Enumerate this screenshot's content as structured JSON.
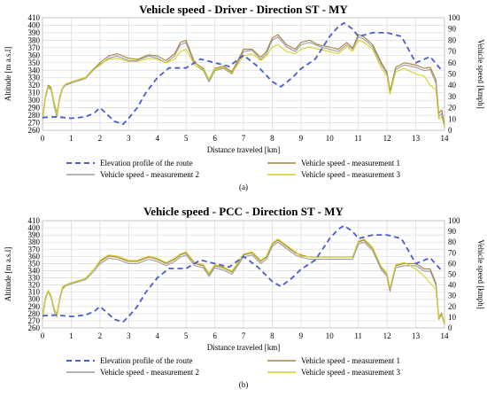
{
  "chart_data": [
    {
      "type": "line",
      "title": "Vehicle speed - Driver - Direction ST - MY",
      "sublabel": "(a)",
      "xlabel": "Distance traveled [km]",
      "ylabel": "Altitude [m a.s.l]",
      "y2label": "Vehicle speed [kmph]",
      "xlim": [
        0,
        14
      ],
      "ylim": [
        260,
        410
      ],
      "y2lim": [
        0,
        100
      ],
      "xticks": [
        "0",
        "1",
        "2",
        "3",
        "4",
        "5",
        "6",
        "7",
        "8",
        "9",
        "10",
        "11",
        "12",
        "13",
        "14"
      ],
      "yticks": [
        "260",
        "270",
        "280",
        "290",
        "300",
        "310",
        "320",
        "330",
        "340",
        "350",
        "360",
        "370",
        "380",
        "390",
        "400",
        "410"
      ],
      "y2ticks": [
        "0",
        "10",
        "20",
        "30",
        "40",
        "50",
        "60",
        "70",
        "80",
        "90",
        "100"
      ],
      "grid": true,
      "legend_position": "bottom",
      "series": [
        {
          "name": "Elevation profile of the route",
          "axis": "left",
          "color": "#4a5bd4",
          "style": "dashed",
          "x": [
            0,
            0.5,
            1,
            1.5,
            1.8,
            2,
            2.2,
            2.5,
            2.8,
            3,
            3.3,
            3.6,
            4,
            4.4,
            5,
            5.5,
            6,
            6.5,
            7,
            7.5,
            8,
            8.3,
            8.7,
            9,
            9.5,
            10,
            10.3,
            10.5,
            10.8,
            11,
            11.5,
            12,
            12.5,
            13,
            13.5,
            13.9
          ],
          "y": [
            277,
            278,
            276,
            278,
            283,
            290,
            283,
            272,
            268,
            276,
            290,
            310,
            330,
            343,
            343,
            355,
            350,
            345,
            360,
            345,
            325,
            318,
            330,
            342,
            355,
            385,
            398,
            403,
            395,
            385,
            390,
            390,
            385,
            350,
            358,
            340
          ]
        },
        {
          "name": "Vehicle speed - measurement 1",
          "axis": "right",
          "color": "#a6803a",
          "style": "solid",
          "x": [
            0,
            0.1,
            0.2,
            0.3,
            0.4,
            0.5,
            0.6,
            0.7,
            0.8,
            1,
            1.5,
            1.8,
            2,
            2.3,
            2.6,
            3,
            3.3,
            3.7,
            4,
            4.3,
            4.6,
            4.8,
            5,
            5.3,
            5.6,
            5.8,
            6,
            6.3,
            6.6,
            7,
            7.3,
            7.6,
            7.8,
            8,
            8.2,
            8.5,
            8.8,
            9,
            9.3,
            9.6,
            10,
            10.3,
            10.6,
            10.8,
            11,
            11.2,
            11.5,
            11.8,
            12,
            12.1,
            12.3,
            12.6,
            13,
            13.3,
            13.5,
            13.7,
            13.8,
            13.9,
            14
          ],
          "y": [
            10,
            30,
            40,
            38,
            25,
            15,
            30,
            38,
            40,
            43,
            47,
            55,
            60,
            66,
            68,
            64,
            63,
            67,
            66,
            62,
            68,
            78,
            80,
            60,
            55,
            45,
            55,
            57,
            52,
            72,
            72,
            65,
            70,
            82,
            85,
            76,
            72,
            78,
            80,
            76,
            74,
            72,
            78,
            73,
            85,
            83,
            76,
            60,
            52,
            35,
            56,
            60,
            58,
            55,
            56,
            45,
            15,
            18,
            5
          ]
        },
        {
          "name": "Vehicle speed - measurement 2",
          "axis": "right",
          "color": "#9a9aa0",
          "style": "solid",
          "x": [
            0,
            0.1,
            0.2,
            0.3,
            0.4,
            0.5,
            0.6,
            0.7,
            0.8,
            1,
            1.5,
            1.8,
            2,
            2.3,
            2.6,
            3,
            3.3,
            3.7,
            4,
            4.3,
            4.6,
            4.8,
            5,
            5.3,
            5.6,
            5.8,
            6,
            6.3,
            6.6,
            7,
            7.3,
            7.6,
            7.8,
            8,
            8.2,
            8.5,
            8.8,
            9,
            9.3,
            9.6,
            10,
            10.3,
            10.6,
            10.8,
            11,
            11.2,
            11.5,
            11.8,
            12,
            12.1,
            12.3,
            12.6,
            13,
            13.3,
            13.5,
            13.7,
            13.8,
            13.9,
            14
          ],
          "y": [
            8,
            28,
            38,
            36,
            22,
            12,
            28,
            37,
            40,
            42,
            46,
            54,
            58,
            64,
            66,
            62,
            62,
            66,
            64,
            60,
            66,
            76,
            78,
            58,
            53,
            43,
            53,
            55,
            50,
            70,
            71,
            63,
            68,
            80,
            83,
            74,
            70,
            76,
            78,
            75,
            72,
            70,
            76,
            72,
            83,
            81,
            74,
            58,
            50,
            33,
            54,
            58,
            56,
            53,
            54,
            42,
            12,
            15,
            4
          ]
        },
        {
          "name": "Vehicle speed - measurement 3",
          "axis": "right",
          "color": "#d6d020",
          "style": "solid",
          "x": [
            0,
            0.1,
            0.2,
            0.3,
            0.4,
            0.5,
            0.6,
            0.7,
            0.8,
            1,
            1.5,
            1.8,
            2,
            2.3,
            2.6,
            3,
            3.3,
            3.7,
            4,
            4.3,
            4.6,
            4.8,
            5,
            5.3,
            5.6,
            5.8,
            6,
            6.3,
            6.6,
            7,
            7.3,
            7.6,
            7.8,
            8,
            8.2,
            8.5,
            8.8,
            9,
            9.3,
            9.6,
            10,
            10.3,
            10.6,
            10.8,
            11,
            11.2,
            11.5,
            11.8,
            12,
            12.1,
            12.3,
            12.6,
            13,
            13.3,
            13.5,
            13.7,
            13.8,
            13.9,
            14
          ],
          "y": [
            9,
            29,
            39,
            37,
            24,
            14,
            29,
            38,
            41,
            43,
            47,
            54,
            59,
            63,
            64,
            61,
            61,
            64,
            63,
            60,
            63,
            70,
            72,
            58,
            54,
            45,
            54,
            56,
            51,
            66,
            68,
            62,
            66,
            74,
            76,
            70,
            68,
            72,
            74,
            72,
            70,
            68,
            74,
            70,
            80,
            78,
            72,
            55,
            48,
            32,
            52,
            55,
            50,
            48,
            40,
            36,
            10,
            12,
            3
          ]
        }
      ]
    },
    {
      "type": "line",
      "title": "Vehicle speed - PCC - Direction ST - MY",
      "sublabel": "(b)",
      "xlabel": "Distance traveled [km]",
      "ylabel": "Altitude [m a.s.l]",
      "y2label": "Vehicle speed [kmph]",
      "xlim": [
        0,
        14
      ],
      "ylim": [
        260,
        410
      ],
      "y2lim": [
        0,
        100
      ],
      "xticks": [
        "0",
        "1",
        "2",
        "3",
        "4",
        "5",
        "6",
        "7",
        "8",
        "9",
        "10",
        "11",
        "12",
        "13",
        "14"
      ],
      "yticks": [
        "260",
        "270",
        "280",
        "290",
        "300",
        "310",
        "320",
        "330",
        "340",
        "350",
        "360",
        "370",
        "380",
        "390",
        "400",
        "410"
      ],
      "y2ticks": [
        "0",
        "10",
        "20",
        "30",
        "40",
        "50",
        "60",
        "70",
        "80",
        "90",
        "100"
      ],
      "grid": true,
      "legend_position": "bottom",
      "series": [
        {
          "name": "Elevation profile of the route",
          "axis": "left",
          "color": "#4a5bd4",
          "style": "dashed",
          "x": [
            0,
            0.5,
            1,
            1.5,
            1.8,
            2,
            2.2,
            2.5,
            2.8,
            3,
            3.3,
            3.6,
            4,
            4.4,
            5,
            5.5,
            6,
            6.5,
            7,
            7.5,
            8,
            8.3,
            8.7,
            9,
            9.5,
            10,
            10.3,
            10.5,
            10.8,
            11,
            11.5,
            12,
            12.5,
            13,
            13.5,
            13.9
          ],
          "y": [
            277,
            278,
            276,
            278,
            283,
            290,
            283,
            272,
            268,
            276,
            290,
            310,
            330,
            343,
            343,
            355,
            350,
            345,
            360,
            345,
            325,
            318,
            330,
            342,
            355,
            385,
            398,
            403,
            395,
            385,
            390,
            390,
            385,
            350,
            358,
            340
          ]
        },
        {
          "name": "Vehicle speed - measurement 1",
          "axis": "right",
          "color": "#a6803a",
          "style": "solid",
          "x": [
            0,
            0.1,
            0.2,
            0.3,
            0.4,
            0.5,
            0.6,
            0.7,
            0.8,
            1,
            1.5,
            1.8,
            2,
            2.3,
            2.6,
            3,
            3.3,
            3.7,
            4,
            4.3,
            4.6,
            4.8,
            5,
            5.3,
            5.6,
            5.8,
            6,
            6.3,
            6.6,
            7,
            7.3,
            7.6,
            7.8,
            8,
            8.2,
            8.5,
            8.8,
            9,
            9.3,
            9.6,
            10,
            10.3,
            10.6,
            10.8,
            11,
            11.2,
            11.5,
            11.8,
            12,
            12.1,
            12.3,
            12.6,
            13,
            13.3,
            13.5,
            13.7,
            13.8,
            13.9,
            14
          ],
          "y": [
            10,
            28,
            35,
            30,
            18,
            12,
            28,
            38,
            40,
            42,
            46,
            55,
            62,
            67,
            66,
            62,
            62,
            66,
            64,
            60,
            64,
            68,
            70,
            60,
            58,
            50,
            58,
            56,
            52,
            68,
            70,
            62,
            66,
            78,
            82,
            76,
            70,
            68,
            66,
            66,
            66,
            66,
            66,
            66,
            80,
            82,
            74,
            56,
            50,
            36,
            58,
            60,
            60,
            55,
            55,
            42,
            10,
            14,
            4
          ]
        },
        {
          "name": "Vehicle speed - measurement 2",
          "axis": "right",
          "color": "#9a9aa0",
          "style": "solid",
          "x": [
            0,
            0.1,
            0.2,
            0.3,
            0.4,
            0.5,
            0.6,
            0.7,
            0.8,
            1,
            1.5,
            1.8,
            2,
            2.3,
            2.6,
            3,
            3.3,
            3.7,
            4,
            4.3,
            4.6,
            4.8,
            5,
            5.3,
            5.6,
            5.8,
            6,
            6.3,
            6.6,
            7,
            7.3,
            7.6,
            7.8,
            8,
            8.2,
            8.5,
            8.8,
            9,
            9.3,
            9.6,
            10,
            10.3,
            10.6,
            10.8,
            11,
            11.2,
            11.5,
            11.8,
            12,
            12.1,
            12.3,
            12.6,
            13,
            13.3,
            13.5,
            13.7,
            13.8,
            13.9,
            14
          ],
          "y": [
            8,
            26,
            34,
            28,
            16,
            10,
            26,
            36,
            39,
            41,
            45,
            53,
            60,
            65,
            64,
            60,
            60,
            64,
            62,
            58,
            62,
            66,
            68,
            58,
            56,
            48,
            56,
            54,
            50,
            66,
            68,
            60,
            64,
            76,
            80,
            74,
            68,
            66,
            64,
            64,
            64,
            64,
            64,
            64,
            78,
            80,
            72,
            54,
            48,
            34,
            56,
            58,
            58,
            53,
            53,
            40,
            8,
            12,
            3
          ]
        },
        {
          "name": "Vehicle speed - measurement 3",
          "axis": "right",
          "color": "#d6d020",
          "style": "solid",
          "x": [
            0,
            0.1,
            0.2,
            0.3,
            0.4,
            0.5,
            0.6,
            0.7,
            0.8,
            1,
            1.5,
            1.8,
            2,
            2.3,
            2.6,
            3,
            3.3,
            3.7,
            4,
            4.3,
            4.6,
            4.8,
            5,
            5.3,
            5.6,
            5.8,
            6,
            6.3,
            6.6,
            7,
            7.3,
            7.6,
            7.8,
            8,
            8.2,
            8.5,
            8.8,
            9,
            9.3,
            9.6,
            10,
            10.3,
            10.6,
            10.8,
            11,
            11.2,
            11.5,
            11.8,
            12,
            12.1,
            12.3,
            12.6,
            13,
            13.3,
            13.5,
            13.7,
            13.8,
            13.9,
            14
          ],
          "y": [
            9,
            27,
            35,
            29,
            17,
            11,
            27,
            37,
            40,
            42,
            46,
            55,
            63,
            68,
            67,
            63,
            63,
            67,
            65,
            61,
            65,
            69,
            71,
            61,
            59,
            51,
            59,
            57,
            53,
            69,
            71,
            63,
            67,
            79,
            83,
            77,
            71,
            67,
            66,
            66,
            66,
            66,
            66,
            66,
            81,
            83,
            75,
            57,
            51,
            37,
            59,
            61,
            55,
            48,
            42,
            36,
            9,
            13,
            3
          ]
        }
      ]
    }
  ]
}
